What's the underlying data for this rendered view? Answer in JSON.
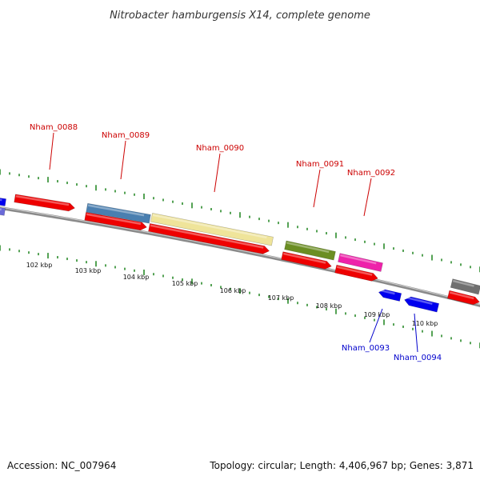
{
  "map": {
    "title": "Nitrobacter hamburgensis X14, complete genome",
    "accession": "Accession: NC_007964",
    "summary": "Topology: circular; Length: 4,406,967 bp; Genes: 3,871"
  },
  "colors": {
    "backbone": "#8a8a8a",
    "tick": "#2a8a2a",
    "forward_label": "#cc0000",
    "reverse_label": "#0000cc",
    "cds": "#ee0000",
    "gene_blue": "#4a7fb0",
    "gene_khaki": "#efe49a",
    "gene_olive": "#6b8e23",
    "gene_magenta": "#ee22aa",
    "gene_gray": "#707070",
    "gene_navy": "#0000ee"
  },
  "scale": {
    "labels": [
      "102 kbp",
      "103 kbp",
      "104 kbp",
      "105 kbp",
      "106 kbp",
      "107 kbp",
      "108 kbp",
      "109 kbp",
      "110 kbp"
    ]
  },
  "genes": {
    "forward": [
      "Nham_0088",
      "Nham_0089",
      "Nham_0090",
      "Nham_0091",
      "Nham_0092"
    ],
    "reverse": [
      "Nham_0093",
      "Nham_0094"
    ]
  }
}
